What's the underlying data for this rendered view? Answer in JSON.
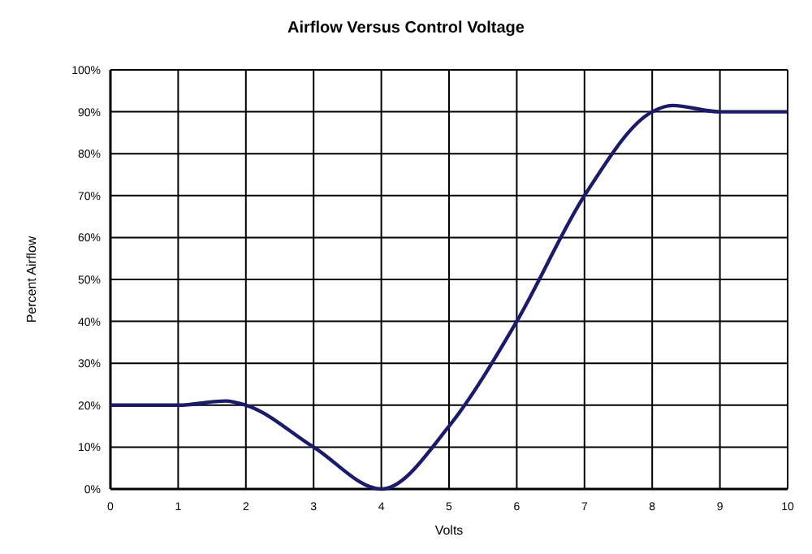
{
  "chart_data": {
    "type": "line",
    "title": "Airflow Versus Control Voltage",
    "xlabel": "Volts",
    "ylabel": "Percent Airflow",
    "x": [
      0,
      1,
      1.7,
      2,
      3,
      4,
      5,
      6,
      7,
      8,
      8.3,
      9,
      10
    ],
    "series": [
      {
        "color": "#1a1a6e",
        "values": [
          20,
          20,
          21,
          20,
          10,
          0,
          15,
          40,
          70,
          90,
          91.5,
          90,
          90
        ]
      }
    ],
    "xlim": [
      0,
      10
    ],
    "xticks": [
      0,
      1,
      2,
      3,
      4,
      5,
      6,
      7,
      8,
      9,
      10
    ],
    "ylim": [
      0,
      100
    ],
    "yticks": [
      {
        "value": 0,
        "label": "0%"
      },
      {
        "value": 10,
        "label": "10%"
      },
      {
        "value": 20,
        "label": "20%"
      },
      {
        "value": 30,
        "label": "30%"
      },
      {
        "value": 40,
        "label": "40%"
      },
      {
        "value": 50,
        "label": "50%"
      },
      {
        "value": 60,
        "label": "60%"
      },
      {
        "value": 70,
        "label": "70%"
      },
      {
        "value": 80,
        "label": "80%"
      },
      {
        "value": 90,
        "label": "90%"
      },
      {
        "value": 100,
        "label": "100%"
      }
    ],
    "grid": true,
    "marker": "none",
    "line_style": "solid"
  }
}
